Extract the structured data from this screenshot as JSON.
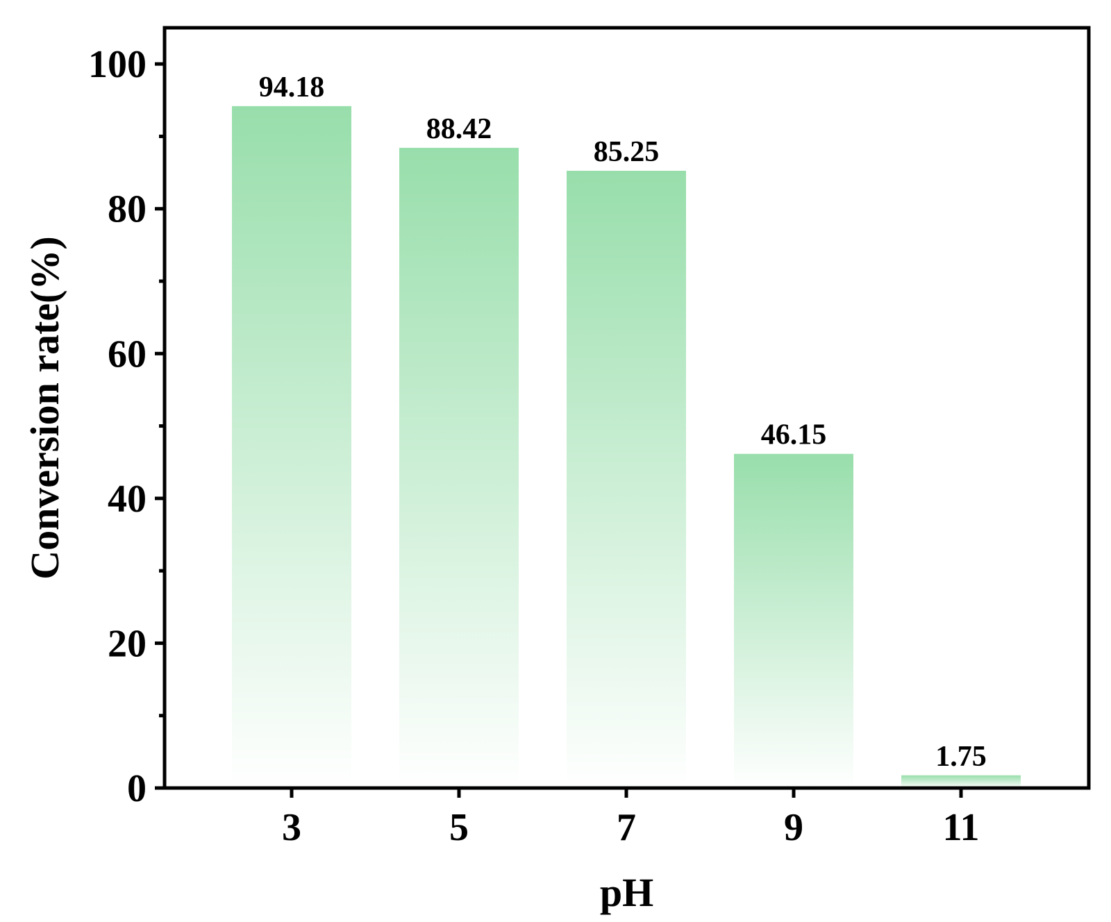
{
  "chart_data": {
    "type": "bar",
    "title": "",
    "xlabel": "pH",
    "ylabel": "Conversion rate(%)",
    "categories": [
      "3",
      "5",
      "7",
      "9",
      "11"
    ],
    "values": [
      94.18,
      88.42,
      85.25,
      46.15,
      1.75
    ],
    "data_labels": [
      "94.18",
      "88.42",
      "85.25",
      "46.15",
      "1.75"
    ],
    "ylim": [
      0,
      105
    ],
    "yticks": [
      0,
      20,
      40,
      60,
      80,
      100
    ],
    "ytick_labels": [
      "0",
      "20",
      "40",
      "60",
      "80",
      "100"
    ],
    "y_minor_step": 10,
    "grid": false,
    "legend": "none",
    "bar_fill": "gradient from green at top to white at bottom",
    "colors": {
      "bar_top": "#98deab",
      "bar_bottom": "#ffffff",
      "axis": "#000000"
    }
  }
}
